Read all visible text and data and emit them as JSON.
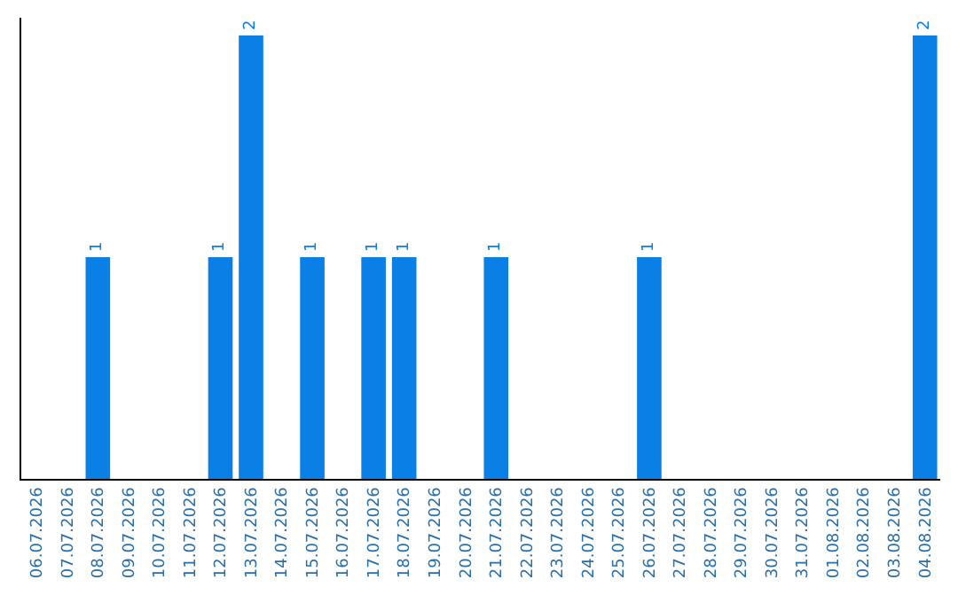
{
  "chart_data": {
    "type": "bar",
    "categories": [
      "06.07.2026",
      "07.07.2026",
      "08.07.2026",
      "09.07.2026",
      "10.07.2026",
      "11.07.2026",
      "12.07.2026",
      "13.07.2026",
      "14.07.2026",
      "15.07.2026",
      "16.07.2026",
      "17.07.2026",
      "18.07.2026",
      "19.07.2026",
      "20.07.2026",
      "21.07.2026",
      "22.07.2026",
      "23.07.2026",
      "24.07.2026",
      "25.07.2026",
      "26.07.2026",
      "27.07.2026",
      "28.07.2026",
      "29.07.2026",
      "30.07.2026",
      "31.07.2026",
      "01.08.2026",
      "02.08.2026",
      "03.08.2026",
      "04.08.2026"
    ],
    "values": [
      0,
      0,
      1,
      0,
      0,
      0,
      1,
      2,
      0,
      1,
      0,
      1,
      1,
      0,
      0,
      1,
      0,
      0,
      0,
      0,
      1,
      0,
      0,
      0,
      0,
      0,
      0,
      0,
      0,
      2
    ],
    "value_labels": [
      null,
      null,
      "1",
      null,
      null,
      null,
      "1",
      "2",
      null,
      "1",
      null,
      "1",
      "1",
      null,
      null,
      "1",
      null,
      null,
      null,
      null,
      "1",
      null,
      null,
      null,
      null,
      null,
      null,
      null,
      null,
      "2"
    ],
    "color": "#0a7fe6",
    "ylim": [
      0,
      2.08
    ],
    "tick_labels": "x"
  }
}
